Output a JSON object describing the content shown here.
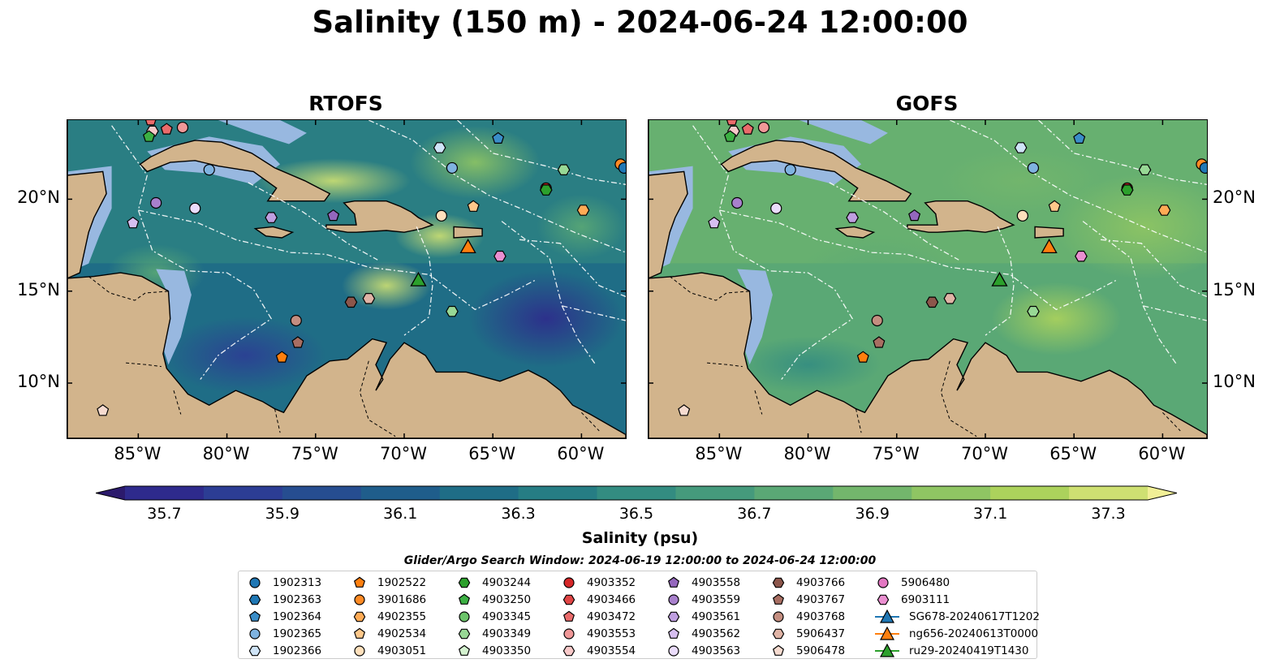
{
  "title": "Salinity (150 m) - 2024-06-24 12:00:00",
  "panels": [
    {
      "title": "RTOFS",
      "model": "rtofs"
    },
    {
      "title": "GOFS",
      "model": "gofs"
    }
  ],
  "axes": {
    "lon_range": [
      -89,
      -57.5
    ],
    "lat_range": [
      7,
      24.3
    ],
    "x_ticks": [
      "85°W",
      "80°W",
      "75°W",
      "70°W",
      "65°W",
      "60°W"
    ],
    "x_tick_values": [
      -85,
      -80,
      -75,
      -70,
      -65,
      -60
    ],
    "y_ticks": [
      "20°N",
      "15°N",
      "10°N"
    ],
    "y_tick_values": [
      20,
      15,
      10
    ]
  },
  "colorbar": {
    "label": "Salinity (psu)",
    "ticks": [
      "35.7",
      "35.9",
      "36.1",
      "36.3",
      "36.5",
      "36.7",
      "36.9",
      "37.1",
      "37.3"
    ],
    "tick_values": [
      35.7,
      35.9,
      36.1,
      36.3,
      36.5,
      36.7,
      36.9,
      37.1,
      37.3
    ],
    "min": 35.7,
    "max": 37.3,
    "colors": [
      "#2b1a6c",
      "#2e2a8c",
      "#2c3d94",
      "#264d90",
      "#1f5d8b",
      "#1f6d86",
      "#267d84",
      "#338c81",
      "#459a7c",
      "#5aa875",
      "#73b66c",
      "#8fc563",
      "#acd25c",
      "#cee072",
      "#f1ef96"
    ],
    "extend": "both"
  },
  "colors": {
    "land": "#d2b48c",
    "shelf": "#98b8e0",
    "coast": "#000000",
    "eez": "#ffffff"
  },
  "search_window": "Glider/Argo Search Window: 2024-06-19 12:00:00 to 2024-06-24 12:00:00",
  "legend": [
    {
      "label": "1902313",
      "marker": "circle",
      "color": "#1f77b4"
    },
    {
      "label": "1902363",
      "marker": "hexagon",
      "color": "#1f77b4"
    },
    {
      "label": "1902364",
      "marker": "pentagon",
      "color": "#3a8dc8"
    },
    {
      "label": "1902365",
      "marker": "circle",
      "color": "#7fb3e0"
    },
    {
      "label": "1902366",
      "marker": "hexagon",
      "color": "#cfe4f7"
    },
    {
      "label": "1902522",
      "marker": "pentagon",
      "color": "#ff7f0e"
    },
    {
      "label": "3901686",
      "marker": "circle",
      "color": "#ff8a24"
    },
    {
      "label": "4902355",
      "marker": "hexagon",
      "color": "#ffab55"
    },
    {
      "label": "4902534",
      "marker": "pentagon",
      "color": "#ffc88a"
    },
    {
      "label": "4903051",
      "marker": "circle",
      "color": "#ffe0bc"
    },
    {
      "label": "4903244",
      "marker": "hexagon",
      "color": "#2ca02c"
    },
    {
      "label": "4903250",
      "marker": "pentagon",
      "color": "#3cb043"
    },
    {
      "label": "4903345",
      "marker": "circle",
      "color": "#6cc46a"
    },
    {
      "label": "4903349",
      "marker": "hexagon",
      "color": "#98d895"
    },
    {
      "label": "4903350",
      "marker": "pentagon",
      "color": "#d4f2cf"
    },
    {
      "label": "4903352",
      "marker": "circle",
      "color": "#d62728"
    },
    {
      "label": "4903466",
      "marker": "hexagon",
      "color": "#e04545"
    },
    {
      "label": "4903472",
      "marker": "pentagon",
      "color": "#ea6b6b"
    },
    {
      "label": "4903553",
      "marker": "circle",
      "color": "#f09898"
    },
    {
      "label": "4903554",
      "marker": "hexagon",
      "color": "#f8c9c9"
    },
    {
      "label": "4903558",
      "marker": "pentagon",
      "color": "#9467bd"
    },
    {
      "label": "4903559",
      "marker": "circle",
      "color": "#a880cc"
    },
    {
      "label": "4903561",
      "marker": "hexagon",
      "color": "#bf9fe0"
    },
    {
      "label": "4903562",
      "marker": "pentagon",
      "color": "#d6bef0"
    },
    {
      "label": "4903563",
      "marker": "circle",
      "color": "#eadcfb"
    },
    {
      "label": "4903766",
      "marker": "hexagon",
      "color": "#8c564b"
    },
    {
      "label": "4903767",
      "marker": "pentagon",
      "color": "#a86e62"
    },
    {
      "label": "4903768",
      "marker": "circle",
      "color": "#c48e80"
    },
    {
      "label": "5906437",
      "marker": "hexagon",
      "color": "#e0b4a6"
    },
    {
      "label": "5906478",
      "marker": "pentagon",
      "color": "#f6dbd0"
    },
    {
      "label": "5906480",
      "marker": "circle",
      "color": "#e377c2"
    },
    {
      "label": "6903111",
      "marker": "hexagon",
      "color": "#ea8fd0"
    },
    {
      "label": "SG678-20240617T1202",
      "marker": "triangle",
      "color": "#1f77b4",
      "line": true
    },
    {
      "label": "ng656-20240613T0000",
      "marker": "triangle",
      "color": "#ff7f0e",
      "line": true
    },
    {
      "label": "ru29-20240419T1430",
      "marker": "triangle",
      "color": "#2ca02c",
      "line": true
    }
  ],
  "floats": [
    {
      "id": "4903472",
      "lon": -83.4,
      "lat": 23.8
    },
    {
      "id": "4903553",
      "lon": -82.5,
      "lat": 23.9
    },
    {
      "id": "4903554",
      "lon": -84.2,
      "lat": 23.7
    },
    {
      "id": "4903472",
      "lon": -84.3,
      "lat": 24.3
    },
    {
      "id": "4903250",
      "lon": -84.4,
      "lat": 23.4
    },
    {
      "id": "1902365",
      "lon": -81.0,
      "lat": 21.6
    },
    {
      "id": "4903559",
      "lon": -84.0,
      "lat": 19.8
    },
    {
      "id": "4903562",
      "lon": -85.3,
      "lat": 18.7
    },
    {
      "id": "4903563",
      "lon": -81.8,
      "lat": 19.5
    },
    {
      "id": "4903561",
      "lon": -77.5,
      "lat": 19.0
    },
    {
      "id": "4903558",
      "lon": -74.0,
      "lat": 19.1
    },
    {
      "id": "1902366",
      "lon": -68.0,
      "lat": 22.8
    },
    {
      "id": "1902365",
      "lon": -67.3,
      "lat": 21.7
    },
    {
      "id": "1902364",
      "lon": -64.7,
      "lat": 23.3
    },
    {
      "id": "4903349",
      "lon": -61.0,
      "lat": 21.6
    },
    {
      "id": "4903352",
      "lon": -62.0,
      "lat": 20.6
    },
    {
      "id": "4903244",
      "lon": -62.0,
      "lat": 20.5
    },
    {
      "id": "3901686",
      "lon": -57.8,
      "lat": 21.9
    },
    {
      "id": "1902313",
      "lon": -57.6,
      "lat": 21.7
    },
    {
      "id": "4903051",
      "lon": -67.9,
      "lat": 19.1
    },
    {
      "id": "4902534",
      "lon": -66.1,
      "lat": 19.6
    },
    {
      "id": "4902355",
      "lon": -59.9,
      "lat": 19.4
    },
    {
      "id": "6903111",
      "lon": -64.6,
      "lat": 16.9
    },
    {
      "id": "4903349",
      "lon": -67.3,
      "lat": 13.9
    },
    {
      "id": "4903766",
      "lon": -73.0,
      "lat": 14.4
    },
    {
      "id": "5906437",
      "lon": -72.0,
      "lat": 14.6
    },
    {
      "id": "4903768",
      "lon": -76.1,
      "lat": 13.4
    },
    {
      "id": "4903767",
      "lon": -76.0,
      "lat": 12.2
    },
    {
      "id": "1902522",
      "lon": -76.9,
      "lat": 11.4
    },
    {
      "id": "5906478",
      "lon": -87.0,
      "lat": 8.5
    }
  ],
  "gliders": [
    {
      "id": "ng656-20240613T0000",
      "lon": -66.4,
      "lat": 17.4
    },
    {
      "id": "ru29-20240419T1430",
      "lon": -69.2,
      "lat": 15.6
    }
  ]
}
